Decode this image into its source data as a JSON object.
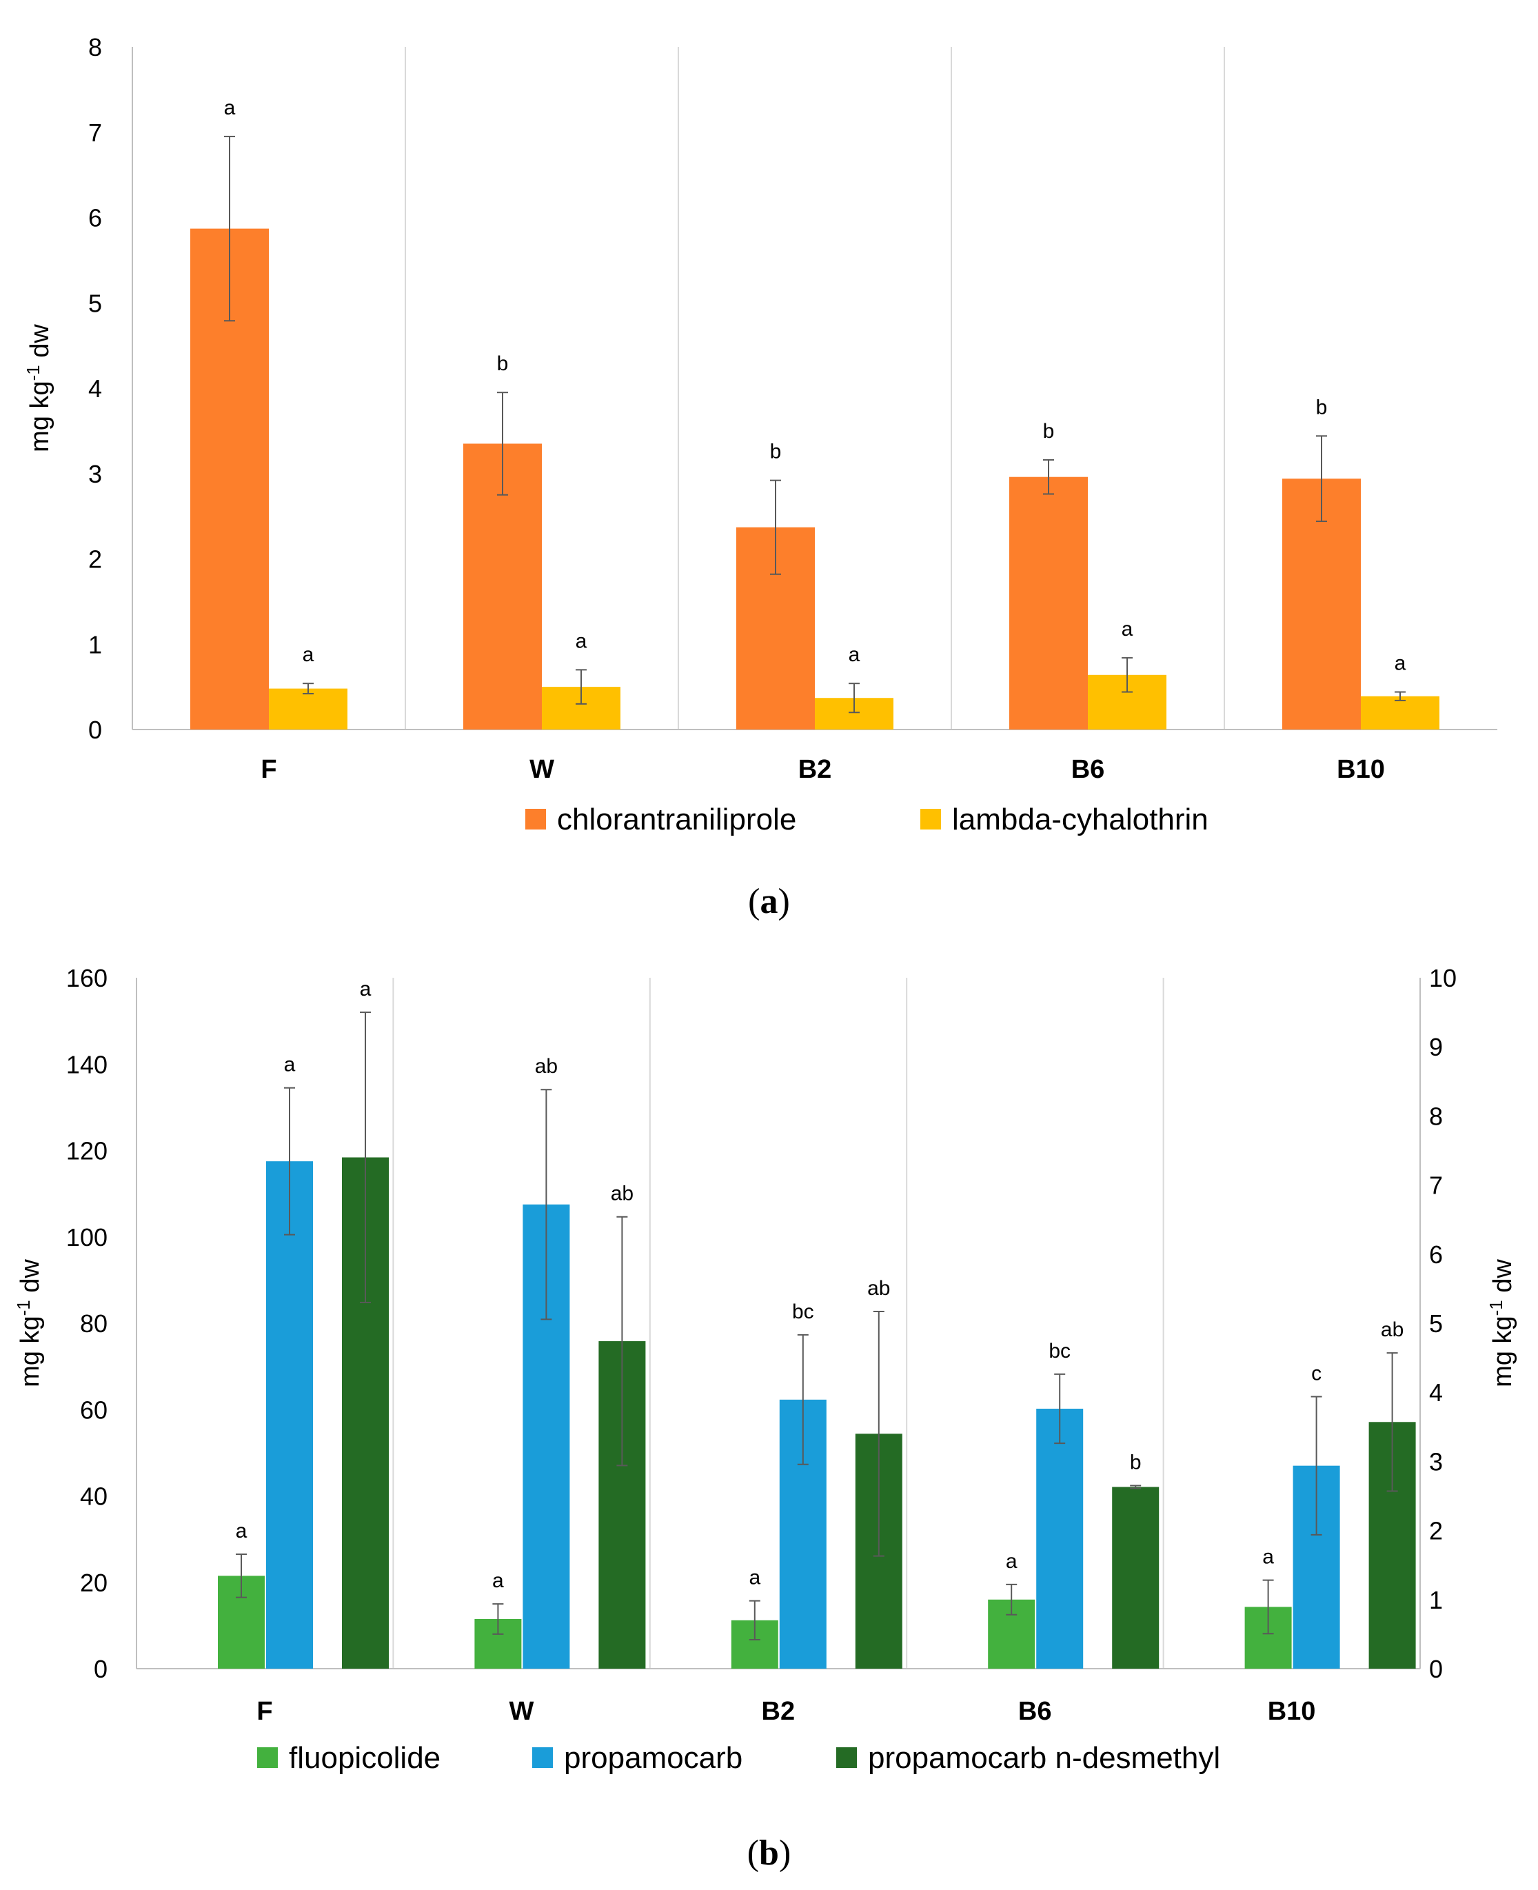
{
  "chart_data": [
    {
      "type": "bar",
      "panel_label": "a",
      "categories": [
        "F",
        "W",
        "B2",
        "B6",
        "B10"
      ],
      "ylabel": "mg kg⁻¹ dw",
      "ylabel_base": "mg kg",
      "ylabel_sup": "-1",
      "ylabel_tail": " dw",
      "ylim": [
        0,
        8
      ],
      "yticks": [
        0,
        1,
        2,
        3,
        4,
        5,
        6,
        7,
        8
      ],
      "grid": "vertical separators between groups",
      "legend_position": "bottom",
      "series": [
        {
          "name": "chlorantraniliprole",
          "color": "#fd7f2b",
          "values": [
            5.87,
            3.35,
            2.37,
            2.96,
            2.94
          ],
          "errors": [
            1.08,
            0.6,
            0.55,
            0.2,
            0.5
          ],
          "letters": [
            "a",
            "b",
            "b",
            "b",
            "b"
          ]
        },
        {
          "name": "lambda-cyhalothrin",
          "color": "#ffc000",
          "values": [
            0.48,
            0.5,
            0.37,
            0.64,
            0.39
          ],
          "errors": [
            0.06,
            0.2,
            0.17,
            0.2,
            0.05
          ],
          "letters": [
            "a",
            "a",
            "a",
            "a",
            "a"
          ]
        }
      ]
    },
    {
      "type": "bar",
      "panel_label": "b",
      "categories": [
        "F",
        "W",
        "B2",
        "B6",
        "B10"
      ],
      "ylabel": "mg kg⁻¹ dw",
      "ylabel_base": "mg kg",
      "ylabel_sup": "-1",
      "ylabel_tail": " dw",
      "ylim": [
        0,
        160
      ],
      "yticks": [
        0,
        20,
        40,
        60,
        80,
        100,
        120,
        140,
        160
      ],
      "y2label": "mg kg⁻¹ dw",
      "y2lim": [
        0,
        10
      ],
      "y2ticks": [
        0,
        1,
        2,
        3,
        4,
        5,
        6,
        7,
        8,
        9,
        10
      ],
      "grid": "vertical separators between groups",
      "legend_position": "bottom",
      "series": [
        {
          "name": "fluopicolide",
          "color": "#43b13e",
          "axis": "left",
          "values": [
            21.5,
            11.5,
            11.2,
            16.0,
            14.3
          ],
          "errors": [
            5.0,
            3.5,
            4.5,
            3.5,
            6.2
          ],
          "letters": [
            "a",
            "a",
            "a",
            "a",
            "a"
          ]
        },
        {
          "name": "propamocarb",
          "color": "#1a9dd9",
          "axis": "left",
          "values": [
            117.5,
            107.5,
            62.3,
            60.2,
            47.0
          ],
          "errors": [
            17.0,
            26.6,
            15.0,
            8.0,
            16.0
          ],
          "letters": [
            "a",
            "ab",
            "bc",
            "bc",
            "c"
          ]
        },
        {
          "name": "propamocarb n-desmethyl",
          "color": "#246b24",
          "axis": "right",
          "values": [
            7.4,
            4.74,
            3.4,
            2.63,
            3.57
          ],
          "errors": [
            2.1,
            1.8,
            1.77,
            0.02,
            1.0
          ],
          "letters": [
            "a",
            "ab",
            "ab",
            "b",
            "ab"
          ]
        }
      ]
    }
  ]
}
